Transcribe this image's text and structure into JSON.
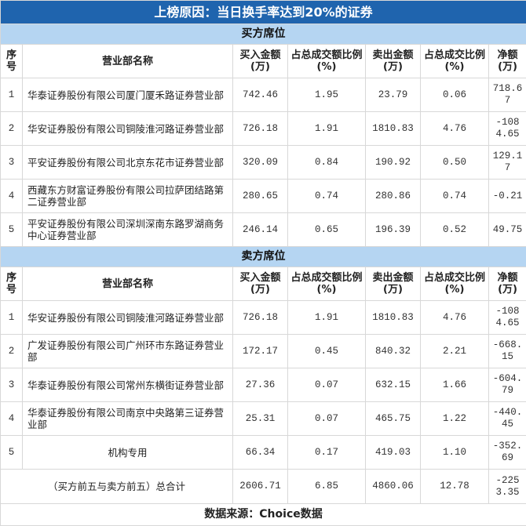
{
  "title": "上榜原因：当日换手率达到20%的证券",
  "columns": [
    "序号",
    "营业部名称",
    "买入金额(万)",
    "占总成交额比例(%)",
    "卖出金额(万)",
    "占总成交比例(%)",
    "净额(万)"
  ],
  "buy": {
    "label": "买方席位",
    "rows": [
      [
        "1",
        "华泰证券股份有限公司厦门厦禾路证券营业部",
        "742.46",
        "1.95",
        "23.79",
        "0.06",
        "718.67"
      ],
      [
        "2",
        "华安证券股份有限公司铜陵淮河路证券营业部",
        "726.18",
        "1.91",
        "1810.83",
        "4.76",
        "-1084.65"
      ],
      [
        "3",
        "平安证券股份有限公司北京东花市证券营业部",
        "320.09",
        "0.84",
        "190.92",
        "0.50",
        "129.17"
      ],
      [
        "4",
        "西藏东方财富证券股份有限公司拉萨团结路第二证券营业部",
        "280.65",
        "0.74",
        "280.86",
        "0.74",
        "-0.21"
      ],
      [
        "5",
        "平安证券股份有限公司深圳深南东路罗湖商务中心证券营业部",
        "246.14",
        "0.65",
        "196.39",
        "0.52",
        "49.75"
      ]
    ]
  },
  "sell": {
    "label": "卖方席位",
    "rows": [
      [
        "1",
        "华安证券股份有限公司铜陵淮河路证券营业部",
        "726.18",
        "1.91",
        "1810.83",
        "4.76",
        "-1084.65"
      ],
      [
        "2",
        "广发证券股份有限公司广州环市东路证券营业部",
        "172.17",
        "0.45",
        "840.32",
        "2.21",
        "-668.15"
      ],
      [
        "3",
        "华泰证券股份有限公司常州东横街证券营业部",
        "27.36",
        "0.07",
        "632.15",
        "1.66",
        "-604.79"
      ],
      [
        "4",
        "华泰证券股份有限公司南京中央路第三证券营业部",
        "25.31",
        "0.07",
        "465.75",
        "1.22",
        "-440.45"
      ],
      [
        "5",
        "机构专用",
        "66.34",
        "0.17",
        "419.03",
        "1.10",
        "-352.69"
      ]
    ]
  },
  "total": {
    "label": "（买方前五与卖方前五）总合计",
    "values": [
      "2606.71",
      "6.85",
      "4860.06",
      "12.78",
      "-2253.35"
    ]
  },
  "footer": "数据来源：Choice数据",
  "colors": {
    "title_bg": "#1f64ae",
    "section_bg": "#b5d5f2"
  }
}
